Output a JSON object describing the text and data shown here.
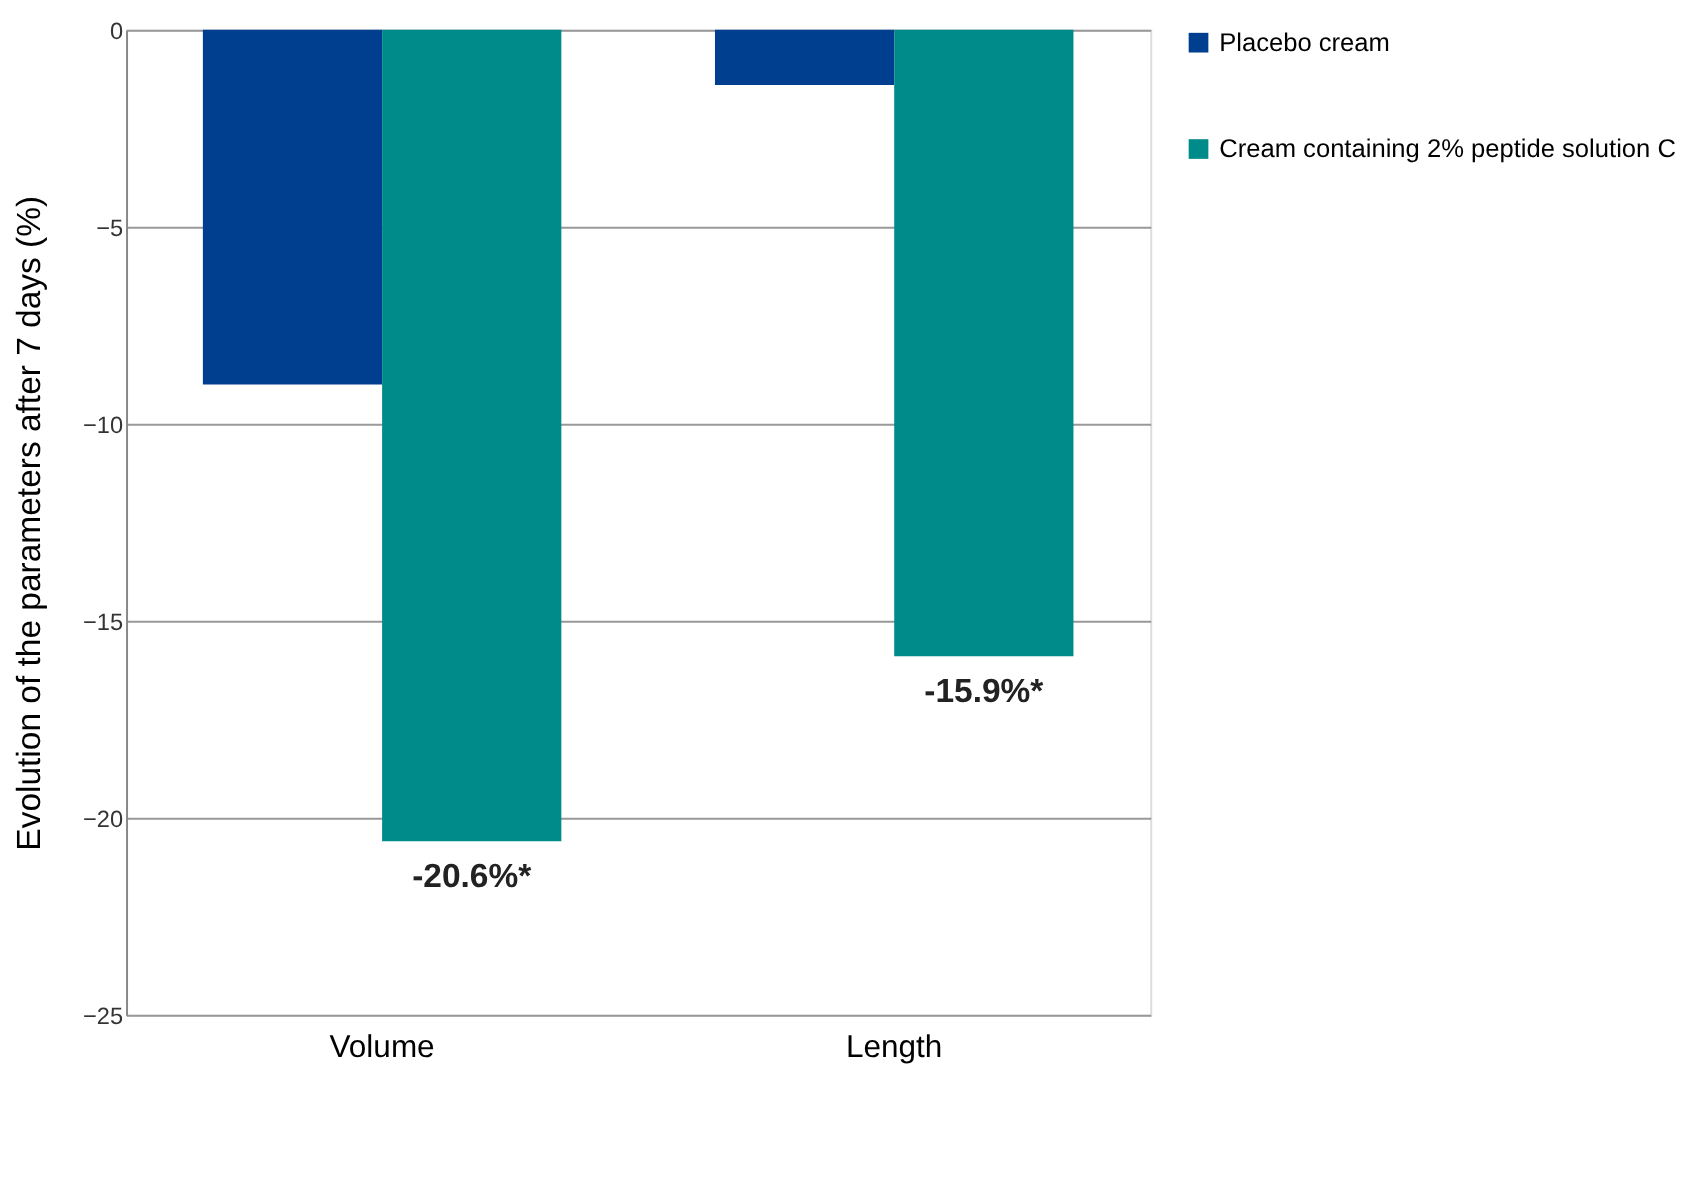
{
  "chart_data": {
    "type": "bar",
    "ylabel": "Evolution of the parameters after 7 days (%)",
    "categories": [
      "Volume",
      "Length"
    ],
    "series": [
      {
        "name": "Placebo cream",
        "color": "#003f8f",
        "values": [
          -9.0,
          -1.4
        ]
      },
      {
        "name": "Cream containing 2% peptide solution C",
        "color": "#008b8b",
        "values": [
          -20.6,
          -15.9
        ],
        "value_labels": [
          "-20.6%*",
          "-15.9%*"
        ]
      }
    ],
    "ylim": [
      -25,
      0
    ],
    "yticks": [
      -25,
      -20,
      -15,
      -10,
      -5,
      0
    ],
    "grid": "y",
    "legend": "right"
  }
}
